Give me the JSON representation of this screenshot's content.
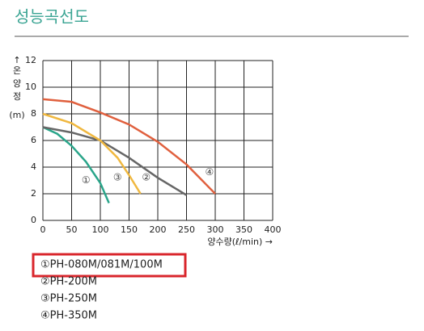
{
  "title": "성능곡선도",
  "chart_data": {
    "type": "line",
    "y_label": [
      "↑",
      "온",
      "양",
      "정",
      "(m)"
    ],
    "x_label": "양수량(ℓ/min) →",
    "xlim": [
      0,
      400
    ],
    "xticks": [
      0,
      50,
      100,
      150,
      200,
      250,
      300,
      350,
      400
    ],
    "ylim": [
      0,
      12
    ],
    "yticks": [
      0,
      2,
      4,
      6,
      8,
      10,
      12
    ],
    "grid": true,
    "highlighted_series": 0,
    "series": [
      {
        "name": "①PH-080M/081M/100M",
        "color": "#2aa58a",
        "x": [
          0,
          25,
          50,
          75,
          100,
          115
        ],
        "values": [
          7,
          6.5,
          5.6,
          4.4,
          2.8,
          1.3
        ]
      },
      {
        "name": "②PH-200M",
        "color": "#666666",
        "x": [
          0,
          50,
          100,
          150,
          200,
          250
        ],
        "values": [
          7,
          6.6,
          6.0,
          4.7,
          3.2,
          1.9
        ]
      },
      {
        "name": "③PH-250M",
        "color": "#f0b840",
        "x": [
          0,
          50,
          100,
          130,
          150,
          170
        ],
        "values": [
          8,
          7.3,
          6.0,
          4.7,
          3.4,
          2.0
        ]
      },
      {
        "name": "④PH-350M",
        "color": "#e0603e",
        "x": [
          0,
          50,
          100,
          150,
          200,
          250,
          300
        ],
        "values": [
          9.1,
          8.9,
          8.1,
          7.2,
          5.9,
          4.2,
          2.0
        ]
      }
    ],
    "annotations": [
      {
        "text": "①",
        "x": 75,
        "y": 3
      },
      {
        "text": "②",
        "x": 180,
        "y": 3.2
      },
      {
        "text": "③",
        "x": 130,
        "y": 3.2
      },
      {
        "text": "④",
        "x": 290,
        "y": 3.6
      }
    ]
  }
}
